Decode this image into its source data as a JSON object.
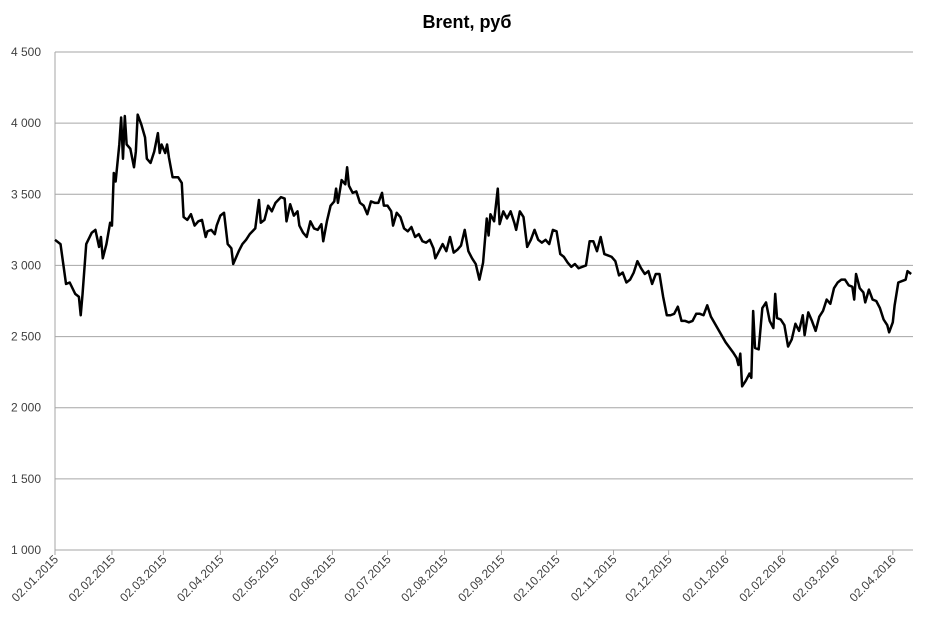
{
  "chart_data": {
    "type": "line",
    "title": "Brent, руб",
    "x": [
      "02.01.2015",
      "05.01.2015",
      "08.01.2015",
      "10.01.2015",
      "13.01.2015",
      "15.01.2015",
      "16.01.2015",
      "17.01.2015",
      "19.01.2015",
      "22.01.2015",
      "24.01.2015",
      "26.01.2015",
      "27.01.2015",
      "28.01.2015",
      "30.01.2015",
      "01.02.2015",
      "02.02.2015",
      "03.02.2015",
      "04.02.2015",
      "06.02.2015",
      "07.02.2015",
      "08.02.2015",
      "09.02.2015",
      "10.02.2015",
      "12.02.2015",
      "14.02.2015",
      "15.02.2015",
      "16.02.2015",
      "18.02.2015",
      "20.02.2015",
      "21.02.2015",
      "23.02.2015",
      "25.02.2015",
      "27.02.2015",
      "28.02.2015",
      "01.03.2015",
      "03.03.2015",
      "04.03.2015",
      "05.03.2015",
      "07.03.2015",
      "10.03.2015",
      "12.03.2015",
      "13.03.2015",
      "15.03.2015",
      "17.03.2015",
      "19.03.2015",
      "21.03.2015",
      "23.03.2015",
      "25.03.2015",
      "26.03.2015",
      "28.03.2015",
      "30.03.2015",
      "31.03.2015",
      "02.04.2015",
      "04.04.2015",
      "06.04.2015",
      "08.04.2015",
      "09.04.2015",
      "12.04.2015",
      "14.04.2015",
      "16.04.2015",
      "18.04.2015",
      "21.04.2015",
      "23.04.2015",
      "24.04.2015",
      "26.04.2015",
      "28.04.2015",
      "30.04.2015",
      "02.05.2015",
      "05.05.2015",
      "07.05.2015",
      "08.05.2015",
      "10.05.2015",
      "12.05.2015",
      "14.05.2015",
      "15.05.2015",
      "17.05.2015",
      "19.05.2015",
      "21.05.2015",
      "23.05.2015",
      "25.05.2015",
      "27.05.2015",
      "28.05.2015",
      "30.05.2015",
      "01.06.2015",
      "03.06.2015",
      "04.06.2015",
      "05.06.2015",
      "07.06.2015",
      "09.06.2015",
      "10.06.2015",
      "11.06.2015",
      "13.06.2015",
      "15.06.2015",
      "17.06.2015",
      "19.06.2015",
      "21.06.2015",
      "23.06.2015",
      "25.06.2015",
      "27.06.2015",
      "29.06.2015",
      "30.06.2015",
      "02.07.2015",
      "04.07.2015",
      "05.07.2015",
      "07.07.2015",
      "09.07.2015",
      "11.07.2015",
      "13.07.2015",
      "15.07.2015",
      "17.07.2015",
      "19.07.2015",
      "21.07.2015",
      "23.07.2015",
      "25.07.2015",
      "27.07.2015",
      "28.07.2015",
      "30.07.2015",
      "01.08.2015",
      "03.08.2015",
      "05.08.2015",
      "07.08.2015",
      "09.08.2015",
      "11.08.2015",
      "13.08.2015",
      "15.08.2015",
      "17.08.2015",
      "19.08.2015",
      "21.08.2015",
      "23.08.2015",
      "25.08.2015",
      "26.08.2015",
      "27.08.2015",
      "29.08.2015",
      "31.08.2015",
      "01.09.2015",
      "03.09.2015",
      "05.09.2015",
      "07.09.2015",
      "09.09.2015",
      "10.09.2015",
      "12.09.2015",
      "14.09.2015",
      "16.09.2015",
      "18.09.2015",
      "20.09.2015",
      "22.09.2015",
      "24.09.2015",
      "26.09.2015",
      "28.09.2015",
      "30.09.2015",
      "02.10.2015",
      "04.10.2015",
      "06.10.2015",
      "08.10.2015",
      "10.10.2015",
      "12.10.2015",
      "14.10.2015",
      "16.10.2015",
      "18.10.2015",
      "20.10.2015",
      "22.10.2015",
      "24.10.2015",
      "26.10.2015",
      "28.10.2015",
      "30.10.2015",
      "01.11.2015",
      "03.11.2015",
      "05.11.2015",
      "07.11.2015",
      "09.11.2015",
      "11.11.2015",
      "13.11.2015",
      "15.11.2015",
      "17.11.2015",
      "19.11.2015",
      "21.11.2015",
      "23.11.2015",
      "25.11.2015",
      "27.11.2015",
      "29.11.2015",
      "01.12.2015",
      "03.12.2015",
      "05.12.2015",
      "07.12.2015",
      "09.12.2015",
      "11.12.2015",
      "13.12.2015",
      "15.12.2015",
      "17.12.2015",
      "19.12.2015",
      "21.12.2015",
      "23.12.2015",
      "25.12.2015",
      "02.01.2016",
      "06.01.2016",
      "08.01.2016",
      "09.01.2016",
      "10.01.2016",
      "11.01.2016",
      "13.01.2016",
      "15.01.2016",
      "16.01.2016",
      "17.01.2016",
      "18.01.2016",
      "20.01.2016",
      "22.01.2016",
      "24.01.2016",
      "26.01.2016",
      "28.01.2016",
      "29.01.2016",
      "30.01.2016",
      "01.02.2016",
      "03.02.2016",
      "05.02.2016",
      "07.02.2016",
      "09.02.2016",
      "11.02.2016",
      "13.02.2016",
      "14.02.2016",
      "16.02.2016",
      "18.02.2016",
      "20.02.2016",
      "22.02.2016",
      "24.02.2016",
      "26.02.2016",
      "28.02.2016",
      "01.03.2016",
      "03.03.2016",
      "05.03.2016",
      "07.03.2016",
      "09.03.2016",
      "11.03.2016",
      "12.03.2016",
      "13.03.2016",
      "15.03.2016",
      "17.03.2016",
      "18.03.2016",
      "20.03.2016",
      "22.03.2016",
      "24.03.2016",
      "26.03.2016",
      "28.03.2016",
      "30.03.2016",
      "31.03.2016",
      "02.04.2016",
      "03.04.2016",
      "05.04.2016",
      "07.04.2016",
      "09.04.2016",
      "10.04.2016",
      "12.04.2016"
    ],
    "values": [
      3180,
      3150,
      2870,
      2880,
      2800,
      2780,
      2650,
      2800,
      3150,
      3230,
      3250,
      3130,
      3200,
      3050,
      3150,
      3300,
      3280,
      3650,
      3590,
      3850,
      4040,
      3750,
      4050,
      3850,
      3820,
      3690,
      3800,
      4060,
      3990,
      3900,
      3750,
      3720,
      3800,
      3930,
      3790,
      3850,
      3790,
      3850,
      3760,
      3620,
      3620,
      3580,
      3340,
      3320,
      3360,
      3280,
      3310,
      3320,
      3200,
      3240,
      3250,
      3220,
      3280,
      3350,
      3370,
      3150,
      3120,
      3010,
      3100,
      3150,
      3180,
      3220,
      3260,
      3460,
      3300,
      3320,
      3420,
      3380,
      3440,
      3480,
      3470,
      3310,
      3430,
      3350,
      3380,
      3280,
      3230,
      3200,
      3310,
      3260,
      3250,
      3290,
      3170,
      3310,
      3420,
      3450,
      3540,
      3440,
      3600,
      3570,
      3690,
      3560,
      3510,
      3520,
      3440,
      3420,
      3360,
      3450,
      3440,
      3440,
      3510,
      3420,
      3420,
      3380,
      3280,
      3370,
      3340,
      3260,
      3240,
      3270,
      3200,
      3220,
      3170,
      3160,
      3180,
      3120,
      3050,
      3100,
      3150,
      3100,
      3200,
      3090,
      3110,
      3140,
      3250,
      3100,
      3050,
      3010,
      2900,
      3020,
      3330,
      3210,
      3360,
      3310,
      3540,
      3290,
      3380,
      3330,
      3380,
      3300,
      3250,
      3380,
      3340,
      3130,
      3180,
      3250,
      3180,
      3160,
      3180,
      3150,
      3250,
      3240,
      3080,
      3060,
      3020,
      2990,
      3010,
      2980,
      2990,
      3000,
      3170,
      3170,
      3100,
      3200,
      3080,
      3070,
      3060,
      3030,
      2930,
      2950,
      2880,
      2900,
      2950,
      3030,
      2980,
      2940,
      2960,
      2870,
      2940,
      2940,
      2780,
      2650,
      2650,
      2660,
      2710,
      2610,
      2610,
      2600,
      2610,
      2660,
      2660,
      2650,
      2720,
      2640,
      2460,
      2390,
      2350,
      2300,
      2380,
      2150,
      2190,
      2240,
      2210,
      2680,
      2420,
      2410,
      2700,
      2740,
      2610,
      2560,
      2800,
      2630,
      2620,
      2580,
      2430,
      2480,
      2590,
      2540,
      2650,
      2510,
      2670,
      2610,
      2540,
      2640,
      2680,
      2760,
      2730,
      2840,
      2880,
      2900,
      2900,
      2860,
      2850,
      2760,
      2940,
      2840,
      2810,
      2740,
      2830,
      2760,
      2750,
      2700,
      2620,
      2580,
      2530,
      2600,
      2720,
      2880,
      2890,
      2900,
      2960,
      2940
    ],
    "color": "#000000",
    "xlim": [
      "02.01.2015",
      "13.04.2016"
    ],
    "xticks": [
      "02.01.2015",
      "02.02.2015",
      "02.03.2015",
      "02.04.2015",
      "02.05.2015",
      "02.06.2015",
      "02.07.2015",
      "02.08.2015",
      "02.09.2015",
      "02.10.2015",
      "02.11.2015",
      "02.12.2015",
      "02.01.2016",
      "02.02.2016",
      "02.03.2016",
      "02.04.2016"
    ],
    "ylim": [
      1000,
      4500
    ],
    "yticks": [
      {
        "value": 1000,
        "label": "1 000"
      },
      {
        "value": 1500,
        "label": "1 500"
      },
      {
        "value": 2000,
        "label": "2 000"
      },
      {
        "value": 2500,
        "label": "2 500"
      },
      {
        "value": 3000,
        "label": "3 000"
      },
      {
        "value": 3500,
        "label": "3 500"
      },
      {
        "value": 4000,
        "label": "4 000"
      },
      {
        "value": 4500,
        "label": "4 500"
      }
    ],
    "grid": true
  }
}
